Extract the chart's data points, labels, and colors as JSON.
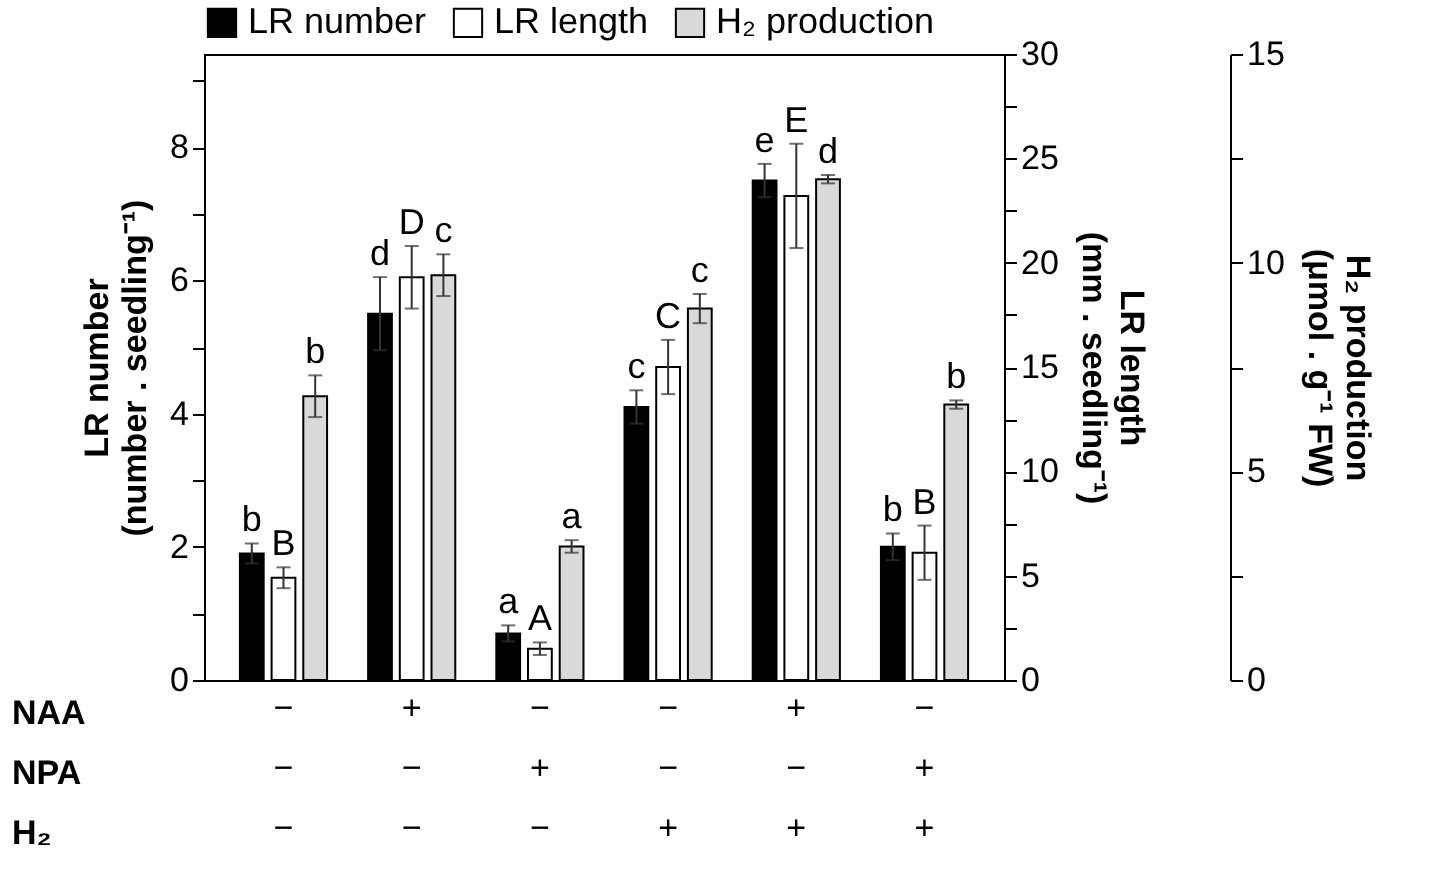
{
  "chart_data": {
    "type": "bar",
    "categories": [
      "−\n−\n−",
      "+\n−\n−",
      "−\n+\n−",
      "−\n−\n+",
      "+\n−\n+",
      "−\n+\n+"
    ],
    "ylabel": "LR number\n(number . seedling⁻¹)",
    "y2label": "LR length\n(mm . seedling⁻¹)",
    "y3label": "H₂ production\n(μmol . g⁻¹ FW)",
    "ylim": [
      0,
      9.4
    ],
    "yticks": [
      0,
      {
        "value": 1,
        "label": null
      },
      2,
      {
        "value": 3,
        "label": null
      },
      4,
      {
        "value": 5,
        "label": null
      },
      6,
      {
        "value": 7,
        "label": null
      },
      8,
      {
        "value": 9,
        "label": null
      }
    ],
    "y2lim": [
      0,
      30
    ],
    "y2ticks": [
      0,
      {
        "value": 2.5,
        "label": null
      },
      5,
      {
        "value": 7.5,
        "label": null
      },
      10,
      {
        "value": 12.5,
        "label": null
      },
      15,
      {
        "value": 17.5,
        "label": null
      },
      20,
      {
        "value": 22.5,
        "label": null
      },
      25,
      {
        "value": 27.5,
        "label": null
      },
      30
    ],
    "y3lim": [
      0,
      15
    ],
    "y3ticks": [
      0,
      {
        "value": 2.5,
        "label": null
      },
      5,
      {
        "value": 7.5,
        "label": null
      },
      10,
      {
        "value": 12.5,
        "label": null
      },
      15
    ],
    "series": [
      {
        "name": "LR number",
        "color": "#000000",
        "axis": "y",
        "values": [
          1.9,
          5.5,
          0.7,
          4.1,
          7.5,
          2.0
        ],
        "errors": [
          0.15,
          0.55,
          0.12,
          0.25,
          0.25,
          0.2
        ],
        "value_labels": [
          "b",
          "d",
          "a",
          "c",
          "e",
          "b"
        ]
      },
      {
        "name": "LR length",
        "color": "#ffffff",
        "axis": "y2",
        "values": [
          4.9,
          19.3,
          1.5,
          15.0,
          23.2,
          6.1
        ],
        "errors": [
          0.5,
          1.5,
          0.3,
          1.3,
          2.5,
          1.3
        ],
        "value_labels": [
          "B",
          "D",
          "A",
          "C",
          "E",
          "B"
        ]
      },
      {
        "name": "H₂ production",
        "color": "#d9d9d9",
        "axis": "y3",
        "values": [
          6.8,
          9.7,
          3.2,
          8.9,
          12.0,
          6.6
        ],
        "errors": [
          0.5,
          0.5,
          0.15,
          0.35,
          0.1,
          0.1
        ],
        "value_labels": [
          "b",
          "c",
          "a",
          "c",
          "d",
          "b"
        ]
      }
    ],
    "annotations": [
      "NAA",
      "NPA",
      "H₂"
    ],
    "legend": "top",
    "grid": false
  }
}
